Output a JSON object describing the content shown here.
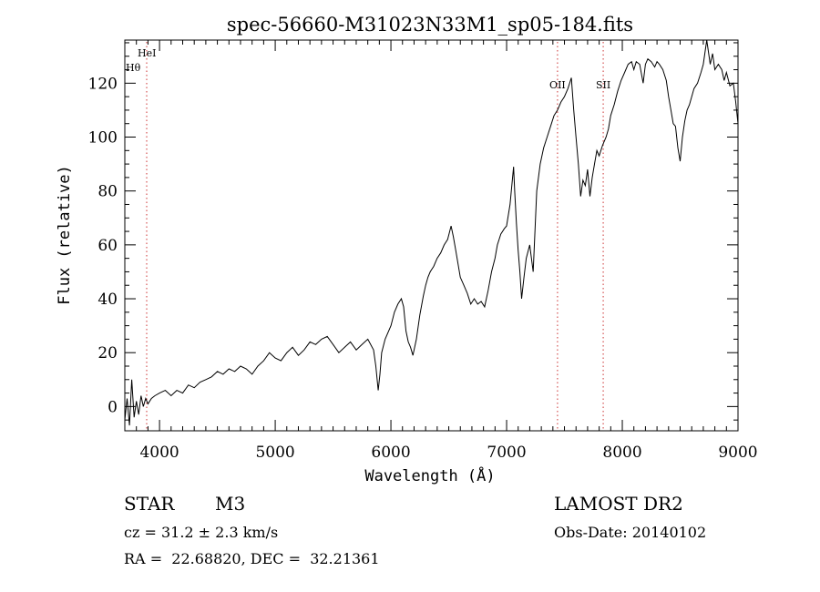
{
  "chart_data": {
    "type": "line",
    "title": "spec-56660-M31023N33M1_sp05-184.fits",
    "xlabel": "Wavelength (Å)",
    "ylabel": "Flux (relative)",
    "xlim": [
      3700,
      9000
    ],
    "ylim": [
      -9,
      136
    ],
    "xticks": [
      4000,
      5000,
      6000,
      7000,
      8000,
      9000
    ],
    "yticks": [
      0,
      20,
      40,
      60,
      80,
      100,
      120
    ],
    "grid": false,
    "line_color": "#000000",
    "marker_color": "#cc3333",
    "line_markers": [
      {
        "label": "HeI",
        "x": 3889
      },
      {
        "label": "Hθ",
        "x": 3798
      },
      {
        "label": "OII",
        "x": 7440
      },
      {
        "label": "SII",
        "x": 7835
      }
    ],
    "series": [
      {
        "x": [
          3700,
          3720,
          3740,
          3760,
          3780,
          3800,
          3820,
          3840,
          3860,
          3880,
          3900,
          3930,
          3960,
          4000,
          4050,
          4100,
          4150,
          4200,
          4250,
          4300,
          4350,
          4400,
          4450,
          4500,
          4550,
          4600,
          4650,
          4700,
          4750,
          4800,
          4850,
          4900,
          4950,
          5000,
          5050,
          5100,
          5150,
          5200,
          5250,
          5300,
          5350,
          5400,
          5450,
          5500,
          5550,
          5600,
          5650,
          5700,
          5750,
          5800,
          5850,
          5870,
          5890,
          5905,
          5920,
          5950,
          6000,
          6030,
          6060,
          6090,
          6110,
          6130,
          6150,
          6170,
          6190,
          6220,
          6250,
          6280,
          6300,
          6320,
          6340,
          6370,
          6400,
          6430,
          6460,
          6490,
          6520,
          6540,
          6560,
          6580,
          6600,
          6630,
          6660,
          6690,
          6720,
          6750,
          6780,
          6810,
          6840,
          6870,
          6900,
          6920,
          6950,
          6980,
          7000,
          7030,
          7060,
          7070,
          7085,
          7100,
          7115,
          7130,
          7150,
          7170,
          7200,
          7230,
          7260,
          7290,
          7320,
          7350,
          7380,
          7410,
          7440,
          7470,
          7500,
          7530,
          7560,
          7580,
          7600,
          7620,
          7640,
          7660,
          7680,
          7700,
          7720,
          7740,
          7760,
          7780,
          7800,
          7830,
          7860,
          7880,
          7900,
          7930,
          7960,
          7990,
          8020,
          8050,
          8080,
          8100,
          8120,
          8150,
          8180,
          8200,
          8220,
          8250,
          8280,
          8300,
          8320,
          8350,
          8380,
          8400,
          8420,
          8440,
          8460,
          8480,
          8500,
          8520,
          8540,
          8560,
          8580,
          8600,
          8620,
          8650,
          8680,
          8700,
          8730,
          8760,
          8780,
          8800,
          8830,
          8860,
          8880,
          8900,
          8930,
          8960,
          8980,
          9000
        ],
        "values": [
          -5,
          3,
          -7,
          10,
          -4,
          2,
          -3,
          4,
          0,
          3,
          1,
          3,
          4,
          5,
          6,
          4,
          6,
          5,
          8,
          7,
          9,
          10,
          11,
          13,
          12,
          14,
          13,
          15,
          14,
          12,
          15,
          17,
          20,
          18,
          17,
          20,
          22,
          19,
          21,
          24,
          23,
          25,
          26,
          23,
          20,
          22,
          24,
          21,
          23,
          25,
          21,
          15,
          6,
          12,
          20,
          25,
          30,
          35,
          38,
          40,
          37,
          28,
          24,
          22,
          19,
          25,
          34,
          41,
          45,
          48,
          50,
          52,
          55,
          57,
          60,
          62,
          67,
          63,
          58,
          53,
          48,
          45,
          42,
          38,
          40,
          38,
          39,
          37,
          43,
          50,
          55,
          60,
          64,
          66,
          67,
          75,
          89,
          80,
          68,
          58,
          50,
          40,
          48,
          55,
          60,
          50,
          80,
          90,
          96,
          100,
          104,
          108,
          110,
          113,
          115,
          118,
          122,
          110,
          100,
          90,
          78,
          84,
          82,
          88,
          78,
          85,
          90,
          95,
          93,
          97,
          100,
          103,
          108,
          112,
          117,
          121,
          124,
          127,
          128,
          125,
          128,
          127,
          120,
          127,
          129,
          128,
          126,
          128,
          127,
          125,
          121,
          115,
          110,
          105,
          104,
          96,
          91,
          100,
          106,
          110,
          112,
          115,
          118,
          120,
          124,
          127,
          136,
          127,
          131,
          125,
          127,
          125,
          121,
          124,
          119,
          120,
          113,
          105
        ]
      }
    ]
  },
  "info": {
    "object_type": "STAR",
    "subclass": "M3",
    "survey": "LAMOST DR2",
    "cz": "cz = 31.2 ± 2.3 km/s",
    "obs_date": "Obs-Date: 20140102",
    "radec": "RA =  22.68820, DEC =  32.21361"
  }
}
